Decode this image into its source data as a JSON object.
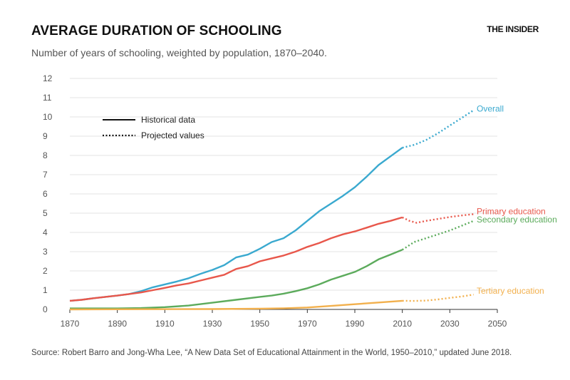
{
  "header": {
    "title": "AVERAGE DURATION OF SCHOOLING",
    "subtitle": "Number of years of schooling, weighted by population, 1870–2040.",
    "brand": "THE INSIDER"
  },
  "footer": {
    "source": "Source: Robert Barro and Jong-Wha Lee, “A New Data Set of Educational Attainment in the World, 1950–2010,” updated June 2018."
  },
  "legend": {
    "historical": "Historical data",
    "projected": "Projected values"
  },
  "colors": {
    "overall": "#3aa9cf",
    "primary": "#e8574b",
    "secondary": "#5cab5c",
    "tertiary": "#f2b04d",
    "grid": "#e3e3e3",
    "axis": "#333333"
  },
  "chart_data": {
    "type": "line",
    "title": "AVERAGE DURATION OF SCHOOLING",
    "subtitle": "Number of years of schooling, weighted by population, 1870–2040.",
    "xlabel": "",
    "ylabel": "",
    "xlim": [
      1870,
      2050
    ],
    "ylim": [
      0,
      12
    ],
    "x_ticks": [
      1870,
      1890,
      1910,
      1930,
      1950,
      1970,
      1990,
      2010,
      2030,
      2050
    ],
    "y_ticks": [
      0,
      1,
      2,
      3,
      4,
      5,
      6,
      7,
      8,
      9,
      10,
      11,
      12
    ],
    "grid": "horizontal",
    "legend_position": "top-left",
    "series": [
      {
        "name": "Overall",
        "color_key": "overall",
        "historical": {
          "x": [
            1870,
            1875,
            1880,
            1885,
            1890,
            1895,
            1900,
            1905,
            1910,
            1915,
            1920,
            1925,
            1930,
            1935,
            1940,
            1945,
            1950,
            1955,
            1960,
            1965,
            1970,
            1975,
            1980,
            1985,
            1990,
            1995,
            2000,
            2005,
            2010
          ],
          "y": [
            0.45,
            0.5,
            0.58,
            0.65,
            0.72,
            0.8,
            0.95,
            1.15,
            1.3,
            1.45,
            1.62,
            1.85,
            2.05,
            2.3,
            2.7,
            2.85,
            3.15,
            3.5,
            3.7,
            4.1,
            4.6,
            5.1,
            5.5,
            5.9,
            6.35,
            6.9,
            7.5,
            7.95,
            8.4
          ]
        },
        "projected": {
          "x": [
            2010,
            2015,
            2020,
            2025,
            2030,
            2035,
            2040
          ],
          "y": [
            8.4,
            8.55,
            8.8,
            9.15,
            9.55,
            9.95,
            10.35
          ]
        }
      },
      {
        "name": "Primary education",
        "color_key": "primary",
        "historical": {
          "x": [
            1870,
            1875,
            1880,
            1885,
            1890,
            1895,
            1900,
            1905,
            1910,
            1915,
            1920,
            1925,
            1930,
            1935,
            1940,
            1945,
            1950,
            1955,
            1960,
            1965,
            1970,
            1975,
            1980,
            1985,
            1990,
            1995,
            2000,
            2005,
            2010
          ],
          "y": [
            0.45,
            0.5,
            0.58,
            0.65,
            0.72,
            0.8,
            0.88,
            1.0,
            1.12,
            1.25,
            1.35,
            1.5,
            1.65,
            1.8,
            2.1,
            2.25,
            2.5,
            2.65,
            2.8,
            3.0,
            3.25,
            3.45,
            3.7,
            3.9,
            4.05,
            4.25,
            4.45,
            4.6,
            4.78
          ]
        },
        "projected": {
          "x": [
            2010,
            2013,
            2016,
            2020,
            2025,
            2030,
            2035,
            2040
          ],
          "y": [
            4.78,
            4.6,
            4.5,
            4.6,
            4.7,
            4.8,
            4.88,
            4.95
          ]
        }
      },
      {
        "name": "Secondary education",
        "color_key": "secondary",
        "historical": {
          "x": [
            1870,
            1880,
            1890,
            1900,
            1910,
            1920,
            1930,
            1940,
            1950,
            1955,
            1960,
            1965,
            1970,
            1975,
            1980,
            1985,
            1990,
            1995,
            2000,
            2005,
            2010
          ],
          "y": [
            0.05,
            0.05,
            0.05,
            0.07,
            0.12,
            0.2,
            0.35,
            0.5,
            0.65,
            0.72,
            0.82,
            0.95,
            1.1,
            1.3,
            1.55,
            1.75,
            1.95,
            2.25,
            2.6,
            2.85,
            3.1
          ]
        },
        "projected": {
          "x": [
            2010,
            2015,
            2020,
            2025,
            2030,
            2035,
            2040
          ],
          "y": [
            3.1,
            3.5,
            3.7,
            3.9,
            4.1,
            4.35,
            4.6
          ]
        }
      },
      {
        "name": "Tertiary education",
        "color_key": "tertiary",
        "historical": {
          "x": [
            1870,
            1900,
            1930,
            1950,
            1960,
            1970,
            1980,
            1990,
            2000,
            2010
          ],
          "y": [
            0.0,
            0.01,
            0.02,
            0.04,
            0.06,
            0.1,
            0.18,
            0.27,
            0.36,
            0.45
          ]
        },
        "projected": {
          "x": [
            2010,
            2015,
            2020,
            2025,
            2030,
            2035,
            2040
          ],
          "y": [
            0.45,
            0.44,
            0.46,
            0.52,
            0.6,
            0.67,
            0.77
          ]
        }
      }
    ]
  }
}
